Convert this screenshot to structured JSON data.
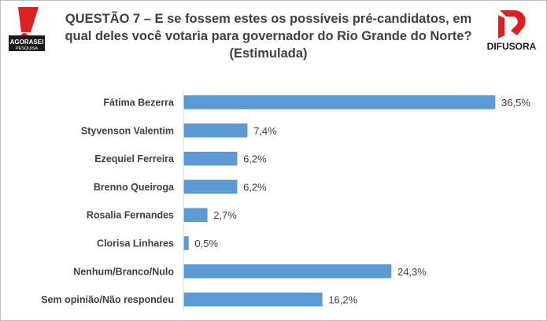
{
  "header": {
    "title_line1": "QUESTÃO 7 – E se fossem estes os possíveis pré-candidatos,  em",
    "title_line2": "qual deles você votaria para governador do Rio Grande do Norte?",
    "title_line3": "(Estimulada)"
  },
  "logos": {
    "left": {
      "line1": "AGORASEI",
      "line2": "PESQUISA",
      "icon": "agorasei-logo-icon",
      "color": "#e02020"
    },
    "right": {
      "text": "DIFUSORA",
      "icon": "difusora-logo-icon",
      "color": "#e02020"
    }
  },
  "chart_data": {
    "type": "bar",
    "orientation": "horizontal",
    "title": "QUESTÃO 7 – E se fossem estes os possíveis pré-candidatos,  em qual deles você votaria para governador do Rio Grande do Norte? (Estimulada)",
    "categories": [
      "Fátima Bezerra",
      "Styvenson Valentim",
      "Ezequiel Ferreira",
      "Brenno Queiroga",
      "Rosalia Fernandes",
      "Clorisa Linhares",
      "Nenhum/Branco/Nulo",
      "Sem opinião/Não respondeu"
    ],
    "values": [
      36.5,
      7.4,
      6.2,
      6.2,
      2.7,
      0.5,
      24.3,
      16.2
    ],
    "value_labels": [
      "36,5%",
      "7,4%",
      "6,2%",
      "6,2%",
      "2,7%",
      "0,5%",
      "24,3%",
      "16,2%"
    ],
    "xlim": [
      0,
      36.5
    ],
    "grid": false,
    "legend": "none",
    "bar_color": "#5b9bd5"
  }
}
